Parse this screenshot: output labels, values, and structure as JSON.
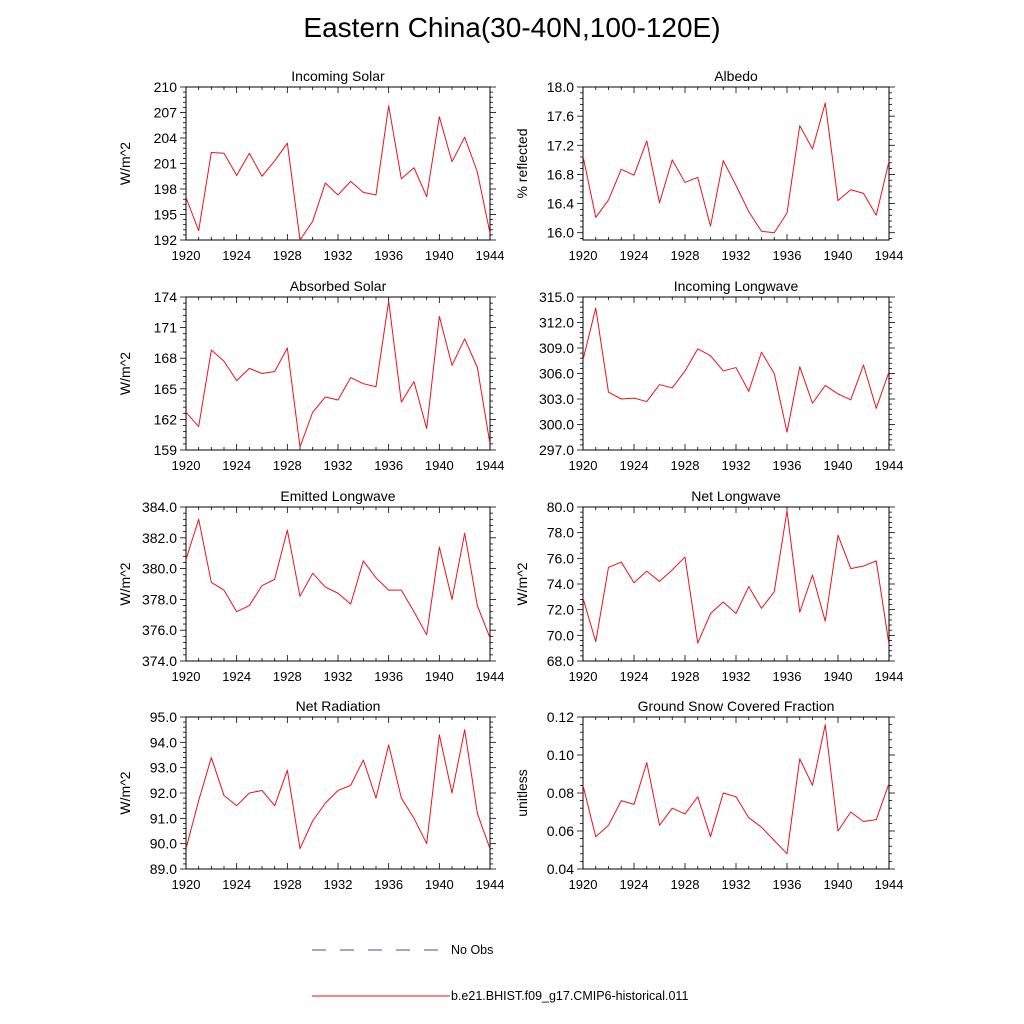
{
  "title": "Eastern China(30-40N,100-120E)",
  "legend": {
    "obs_label": "No Obs",
    "model_label": "b.e21.BHIST.f09_g17.CMIP6-historical.011",
    "obs_color": "#4a4ab4",
    "model_color": "#e8141e"
  },
  "chart_data": [
    {
      "type": "line",
      "title": "Incoming Solar",
      "ylabel": "W/m^2",
      "xlim": [
        1920,
        1944
      ],
      "ylim": [
        192,
        210
      ],
      "xticks": [
        "1920",
        "1924",
        "1928",
        "1932",
        "1936",
        "1940",
        "1944"
      ],
      "yticks": [
        "192",
        "195",
        "198",
        "201",
        "204",
        "207",
        "210"
      ],
      "x": [
        1920,
        1921,
        1922,
        1923,
        1924,
        1925,
        1926,
        1927,
        1928,
        1929,
        1930,
        1931,
        1932,
        1933,
        1934,
        1935,
        1936,
        1937,
        1938,
        1939,
        1940,
        1941,
        1942,
        1943,
        1944
      ],
      "series": [
        {
          "name": "b.e21.BHIST.f09_g17.CMIP6-historical.011",
          "values": [
            197.0,
            193.1,
            202.3,
            202.2,
            199.6,
            202.2,
            199.5,
            201.3,
            203.4,
            192.0,
            194.2,
            198.7,
            197.3,
            198.9,
            197.6,
            197.3,
            207.8,
            199.2,
            200.5,
            197.1,
            206.5,
            201.2,
            204.1,
            200.0,
            192.8
          ]
        }
      ]
    },
    {
      "type": "line",
      "title": "Albedo",
      "ylabel": "% reflected",
      "xlim": [
        1920,
        1944
      ],
      "ylim": [
        15.9,
        18.0
      ],
      "xticks": [
        "1920",
        "1924",
        "1928",
        "1932",
        "1936",
        "1940",
        "1944"
      ],
      "yticks": [
        "16.0",
        "16.4",
        "16.8",
        "17.2",
        "17.6",
        "18.0"
      ],
      "x": [
        1920,
        1921,
        1922,
        1923,
        1924,
        1925,
        1926,
        1927,
        1928,
        1929,
        1930,
        1931,
        1932,
        1933,
        1934,
        1935,
        1936,
        1937,
        1938,
        1939,
        1940,
        1941,
        1942,
        1943,
        1944
      ],
      "series": [
        {
          "name": "b.e21.BHIST.f09_g17.CMIP6-historical.011",
          "values": [
            17.05,
            16.21,
            16.45,
            16.87,
            16.79,
            17.26,
            16.41,
            17.0,
            16.69,
            16.76,
            16.09,
            16.99,
            16.65,
            16.29,
            16.02,
            16.0,
            16.27,
            17.47,
            17.15,
            17.78,
            16.44,
            16.59,
            16.54,
            16.24,
            16.98
          ]
        }
      ]
    },
    {
      "type": "line",
      "title": "Absorbed Solar",
      "ylabel": "W/m^2",
      "xlim": [
        1920,
        1944
      ],
      "ylim": [
        159,
        174
      ],
      "xticks": [
        "1920",
        "1924",
        "1928",
        "1932",
        "1936",
        "1940",
        "1944"
      ],
      "yticks": [
        "159",
        "162",
        "165",
        "168",
        "171",
        "174"
      ],
      "x": [
        1920,
        1921,
        1922,
        1923,
        1924,
        1925,
        1926,
        1927,
        1928,
        1929,
        1930,
        1931,
        1932,
        1933,
        1934,
        1935,
        1936,
        1937,
        1938,
        1939,
        1940,
        1941,
        1942,
        1943,
        1944
      ],
      "series": [
        {
          "name": "b.e21.BHIST.f09_g17.CMIP6-historical.011",
          "values": [
            162.7,
            161.3,
            168.8,
            167.7,
            165.8,
            167.0,
            166.5,
            166.7,
            169.0,
            159.3,
            162.7,
            164.2,
            163.9,
            166.1,
            165.5,
            165.2,
            173.6,
            163.7,
            165.7,
            161.1,
            172.1,
            167.3,
            169.9,
            167.1,
            159.6
          ]
        }
      ]
    },
    {
      "type": "line",
      "title": "Incoming Longwave",
      "ylabel": "",
      "xlim": [
        1920,
        1944
      ],
      "ylim": [
        297.0,
        315.0
      ],
      "xticks": [
        "1920",
        "1924",
        "1928",
        "1932",
        "1936",
        "1940",
        "1944"
      ],
      "yticks": [
        "297.0",
        "300.0",
        "303.0",
        "306.0",
        "309.0",
        "312.0",
        "315.0"
      ],
      "x": [
        1920,
        1921,
        1922,
        1923,
        1924,
        1925,
        1926,
        1927,
        1928,
        1929,
        1930,
        1931,
        1932,
        1933,
        1934,
        1935,
        1936,
        1937,
        1938,
        1939,
        1940,
        1941,
        1942,
        1943,
        1944
      ],
      "series": [
        {
          "name": "b.e21.BHIST.f09_g17.CMIP6-historical.011",
          "values": [
            307.6,
            313.7,
            303.8,
            303.0,
            303.1,
            302.7,
            304.7,
            304.3,
            306.3,
            308.9,
            308.1,
            306.3,
            306.7,
            303.9,
            308.5,
            306.0,
            299.1,
            306.8,
            302.5,
            304.6,
            303.6,
            302.9,
            307.0,
            301.9,
            306.2
          ]
        }
      ]
    },
    {
      "type": "line",
      "title": "Emitted Longwave",
      "ylabel": "W/m^2",
      "xlim": [
        1920,
        1944
      ],
      "ylim": [
        374.0,
        384.0
      ],
      "xticks": [
        "1920",
        "1924",
        "1928",
        "1932",
        "1936",
        "1940",
        "1944"
      ],
      "yticks": [
        "374.0",
        "376.0",
        "378.0",
        "380.0",
        "382.0",
        "384.0"
      ],
      "x": [
        1920,
        1921,
        1922,
        1923,
        1924,
        1925,
        1926,
        1927,
        1928,
        1929,
        1930,
        1931,
        1932,
        1933,
        1934,
        1935,
        1936,
        1937,
        1938,
        1939,
        1940,
        1941,
        1942,
        1943,
        1944
      ],
      "series": [
        {
          "name": "b.e21.BHIST.f09_g17.CMIP6-historical.011",
          "values": [
            380.6,
            383.2,
            379.1,
            378.6,
            377.2,
            377.6,
            378.9,
            379.3,
            382.5,
            378.2,
            379.7,
            378.8,
            378.4,
            377.7,
            380.5,
            379.4,
            378.6,
            378.6,
            377.2,
            375.7,
            381.4,
            378.0,
            382.3,
            377.6,
            375.5
          ]
        }
      ]
    },
    {
      "type": "line",
      "title": "Net Longwave",
      "ylabel": "W/m^2",
      "xlim": [
        1920,
        1944
      ],
      "ylim": [
        68.0,
        80.0
      ],
      "xticks": [
        "1920",
        "1924",
        "1928",
        "1932",
        "1936",
        "1940",
        "1944"
      ],
      "yticks": [
        "68.0",
        "70.0",
        "72.0",
        "74.0",
        "76.0",
        "78.0",
        "80.0"
      ],
      "x": [
        1920,
        1921,
        1922,
        1923,
        1924,
        1925,
        1926,
        1927,
        1928,
        1929,
        1930,
        1931,
        1932,
        1933,
        1934,
        1935,
        1936,
        1937,
        1938,
        1939,
        1940,
        1941,
        1942,
        1943,
        1944
      ],
      "series": [
        {
          "name": "b.e21.BHIST.f09_g17.CMIP6-historical.011",
          "values": [
            72.9,
            69.5,
            75.3,
            75.7,
            74.1,
            75.0,
            74.2,
            75.1,
            76.1,
            69.4,
            71.7,
            72.6,
            71.7,
            73.8,
            72.1,
            73.4,
            79.7,
            71.8,
            74.7,
            71.1,
            77.8,
            75.2,
            75.4,
            75.8,
            69.3
          ]
        }
      ]
    },
    {
      "type": "line",
      "title": "Net Radiation",
      "ylabel": "W/m^2",
      "xlim": [
        1920,
        1944
      ],
      "ylim": [
        89.0,
        95.0
      ],
      "xticks": [
        "1920",
        "1924",
        "1928",
        "1932",
        "1936",
        "1940",
        "1944"
      ],
      "yticks": [
        "89.0",
        "90.0",
        "91.0",
        "92.0",
        "93.0",
        "94.0",
        "95.0"
      ],
      "x": [
        1920,
        1921,
        1922,
        1923,
        1924,
        1925,
        1926,
        1927,
        1928,
        1929,
        1930,
        1931,
        1932,
        1933,
        1934,
        1935,
        1936,
        1937,
        1938,
        1939,
        1940,
        1941,
        1942,
        1943,
        1944
      ],
      "series": [
        {
          "name": "b.e21.BHIST.f09_g17.CMIP6-historical.011",
          "values": [
            89.8,
            91.7,
            93.4,
            91.9,
            91.5,
            92.0,
            92.1,
            91.5,
            92.9,
            89.8,
            90.9,
            91.6,
            92.1,
            92.3,
            93.3,
            91.8,
            93.9,
            91.8,
            91.0,
            90.0,
            94.3,
            92.0,
            94.5,
            91.2,
            89.8
          ]
        }
      ]
    },
    {
      "type": "line",
      "title": "Ground Snow Covered Fraction",
      "ylabel": "unitless",
      "xlim": [
        1920,
        1944
      ],
      "ylim": [
        0.04,
        0.12
      ],
      "xticks": [
        "1920",
        "1924",
        "1928",
        "1932",
        "1936",
        "1940",
        "1944"
      ],
      "yticks": [
        "0.04",
        "0.06",
        "0.08",
        "0.10",
        "0.12"
      ],
      "x": [
        1920,
        1921,
        1922,
        1923,
        1924,
        1925,
        1926,
        1927,
        1928,
        1929,
        1930,
        1931,
        1932,
        1933,
        1934,
        1935,
        1936,
        1937,
        1938,
        1939,
        1940,
        1941,
        1942,
        1943,
        1944
      ],
      "series": [
        {
          "name": "b.e21.BHIST.f09_g17.CMIP6-historical.011",
          "values": [
            0.084,
            0.057,
            0.063,
            0.076,
            0.074,
            0.096,
            0.063,
            0.072,
            0.069,
            0.078,
            0.057,
            0.08,
            0.078,
            0.067,
            0.062,
            0.055,
            0.048,
            0.098,
            0.084,
            0.116,
            0.06,
            0.07,
            0.065,
            0.066,
            0.085
          ]
        }
      ]
    }
  ]
}
